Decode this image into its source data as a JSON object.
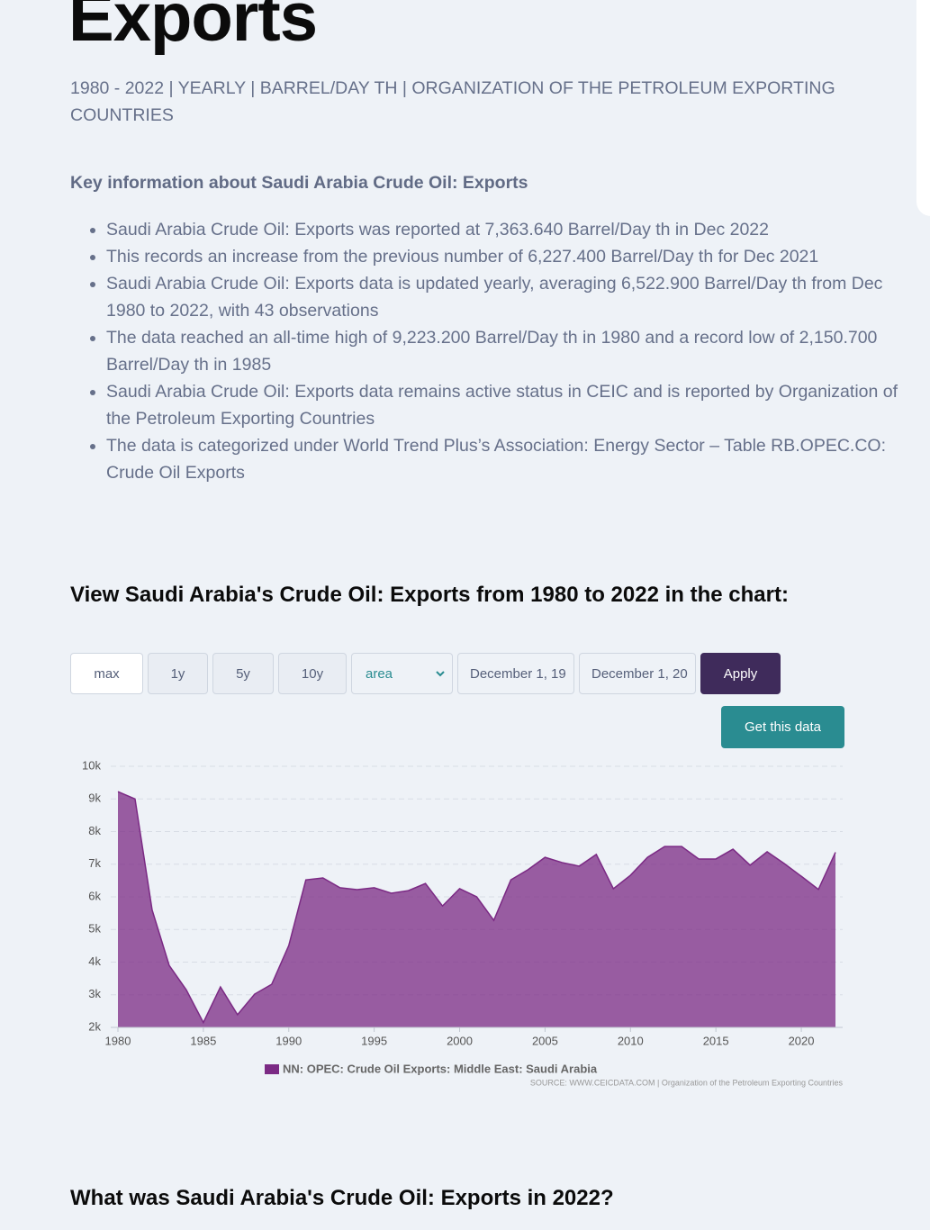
{
  "header": {
    "title": "Exports",
    "subtitle": "1980 - 2022 | YEARLY | BARREL/DAY TH | ORGANIZATION OF THE PETROLEUM EXPORTING COUNTRIES"
  },
  "key_info": {
    "heading": "Key information about Saudi Arabia Crude Oil: Exports",
    "items": [
      "Saudi Arabia Crude Oil: Exports was reported at 7,363.640 Barrel/Day th in Dec 2022",
      "This records an increase from the previous number of 6,227.400 Barrel/Day th for Dec 2021",
      "Saudi Arabia Crude Oil: Exports data is updated yearly, averaging 6,522.900 Barrel/Day th from Dec 1980 to 2022, with 43 observations",
      "The data reached an all-time high of 9,223.200 Barrel/Day th in 1980 and a record low of 2,150.700 Barrel/Day th in 1985",
      "Saudi Arabia Crude Oil: Exports data remains active status in CEIC and is reported by Organization of the Petroleum Exporting Countries",
      "The data is categorized under World Trend Plus’s Association: Energy Sector – Table RB.OPEC.CO: Crude Oil Exports"
    ]
  },
  "chart_section": {
    "heading": "View Saudi Arabia's Crude Oil: Exports from 1980 to 2022 in the chart:",
    "controls": {
      "ranges": [
        "max",
        "1y",
        "5y",
        "10y"
      ],
      "chart_type": "area",
      "start_date": "December 1, 19",
      "end_date": "December 1, 20",
      "apply": "Apply",
      "get_data": "Get this data"
    }
  },
  "chart_data": {
    "type": "area",
    "x": [
      1980,
      1981,
      1982,
      1983,
      1984,
      1985,
      1986,
      1987,
      1988,
      1989,
      1990,
      1991,
      1992,
      1993,
      1994,
      1995,
      1996,
      1997,
      1998,
      1999,
      2000,
      2001,
      2002,
      2003,
      2004,
      2005,
      2006,
      2007,
      2008,
      2009,
      2010,
      2011,
      2012,
      2013,
      2014,
      2015,
      2016,
      2017,
      2018,
      2019,
      2020,
      2021,
      2022
    ],
    "series": [
      {
        "name": "NN: OPEC: Crude Oil Exports: Middle East: Saudi Arabia",
        "color": "#7b2a84",
        "values": [
          9223.2,
          9000,
          5600,
          3900,
          3150,
          2150.7,
          3240,
          2390,
          3020,
          3320,
          4510,
          6520,
          6580,
          6280,
          6220,
          6280,
          6110,
          6190,
          6410,
          5720,
          6250,
          6000,
          5280,
          6520,
          6830,
          7210,
          7050,
          6940,
          7300,
          6250,
          6660,
          7210,
          7540,
          7540,
          7160,
          7160,
          7460,
          6970,
          7380,
          7020,
          6630,
          6227.4,
          7363.64
        ]
      }
    ],
    "xlim": [
      1980,
      2022
    ],
    "xticks": [
      1980,
      1985,
      1990,
      1995,
      2000,
      2005,
      2010,
      2015,
      2020
    ],
    "ylim": [
      2000,
      10000
    ],
    "yticks": [
      {
        "value": 2000,
        "label": "2k"
      },
      {
        "value": 3000,
        "label": "3k"
      },
      {
        "value": 4000,
        "label": "4k"
      },
      {
        "value": 5000,
        "label": "5k"
      },
      {
        "value": 6000,
        "label": "6k"
      },
      {
        "value": 7000,
        "label": "7k"
      },
      {
        "value": 8000,
        "label": "8k"
      },
      {
        "value": 9000,
        "label": "9k"
      },
      {
        "value": 10000,
        "label": "10k"
      }
    ],
    "grid": true,
    "legend": "bottom",
    "source": "SOURCE: WWW.CEICDATA.COM | Organization of the Petroleum Exporting Countries"
  },
  "next_section": {
    "heading": "What was Saudi Arabia's Crude Oil: Exports in 2022?"
  }
}
